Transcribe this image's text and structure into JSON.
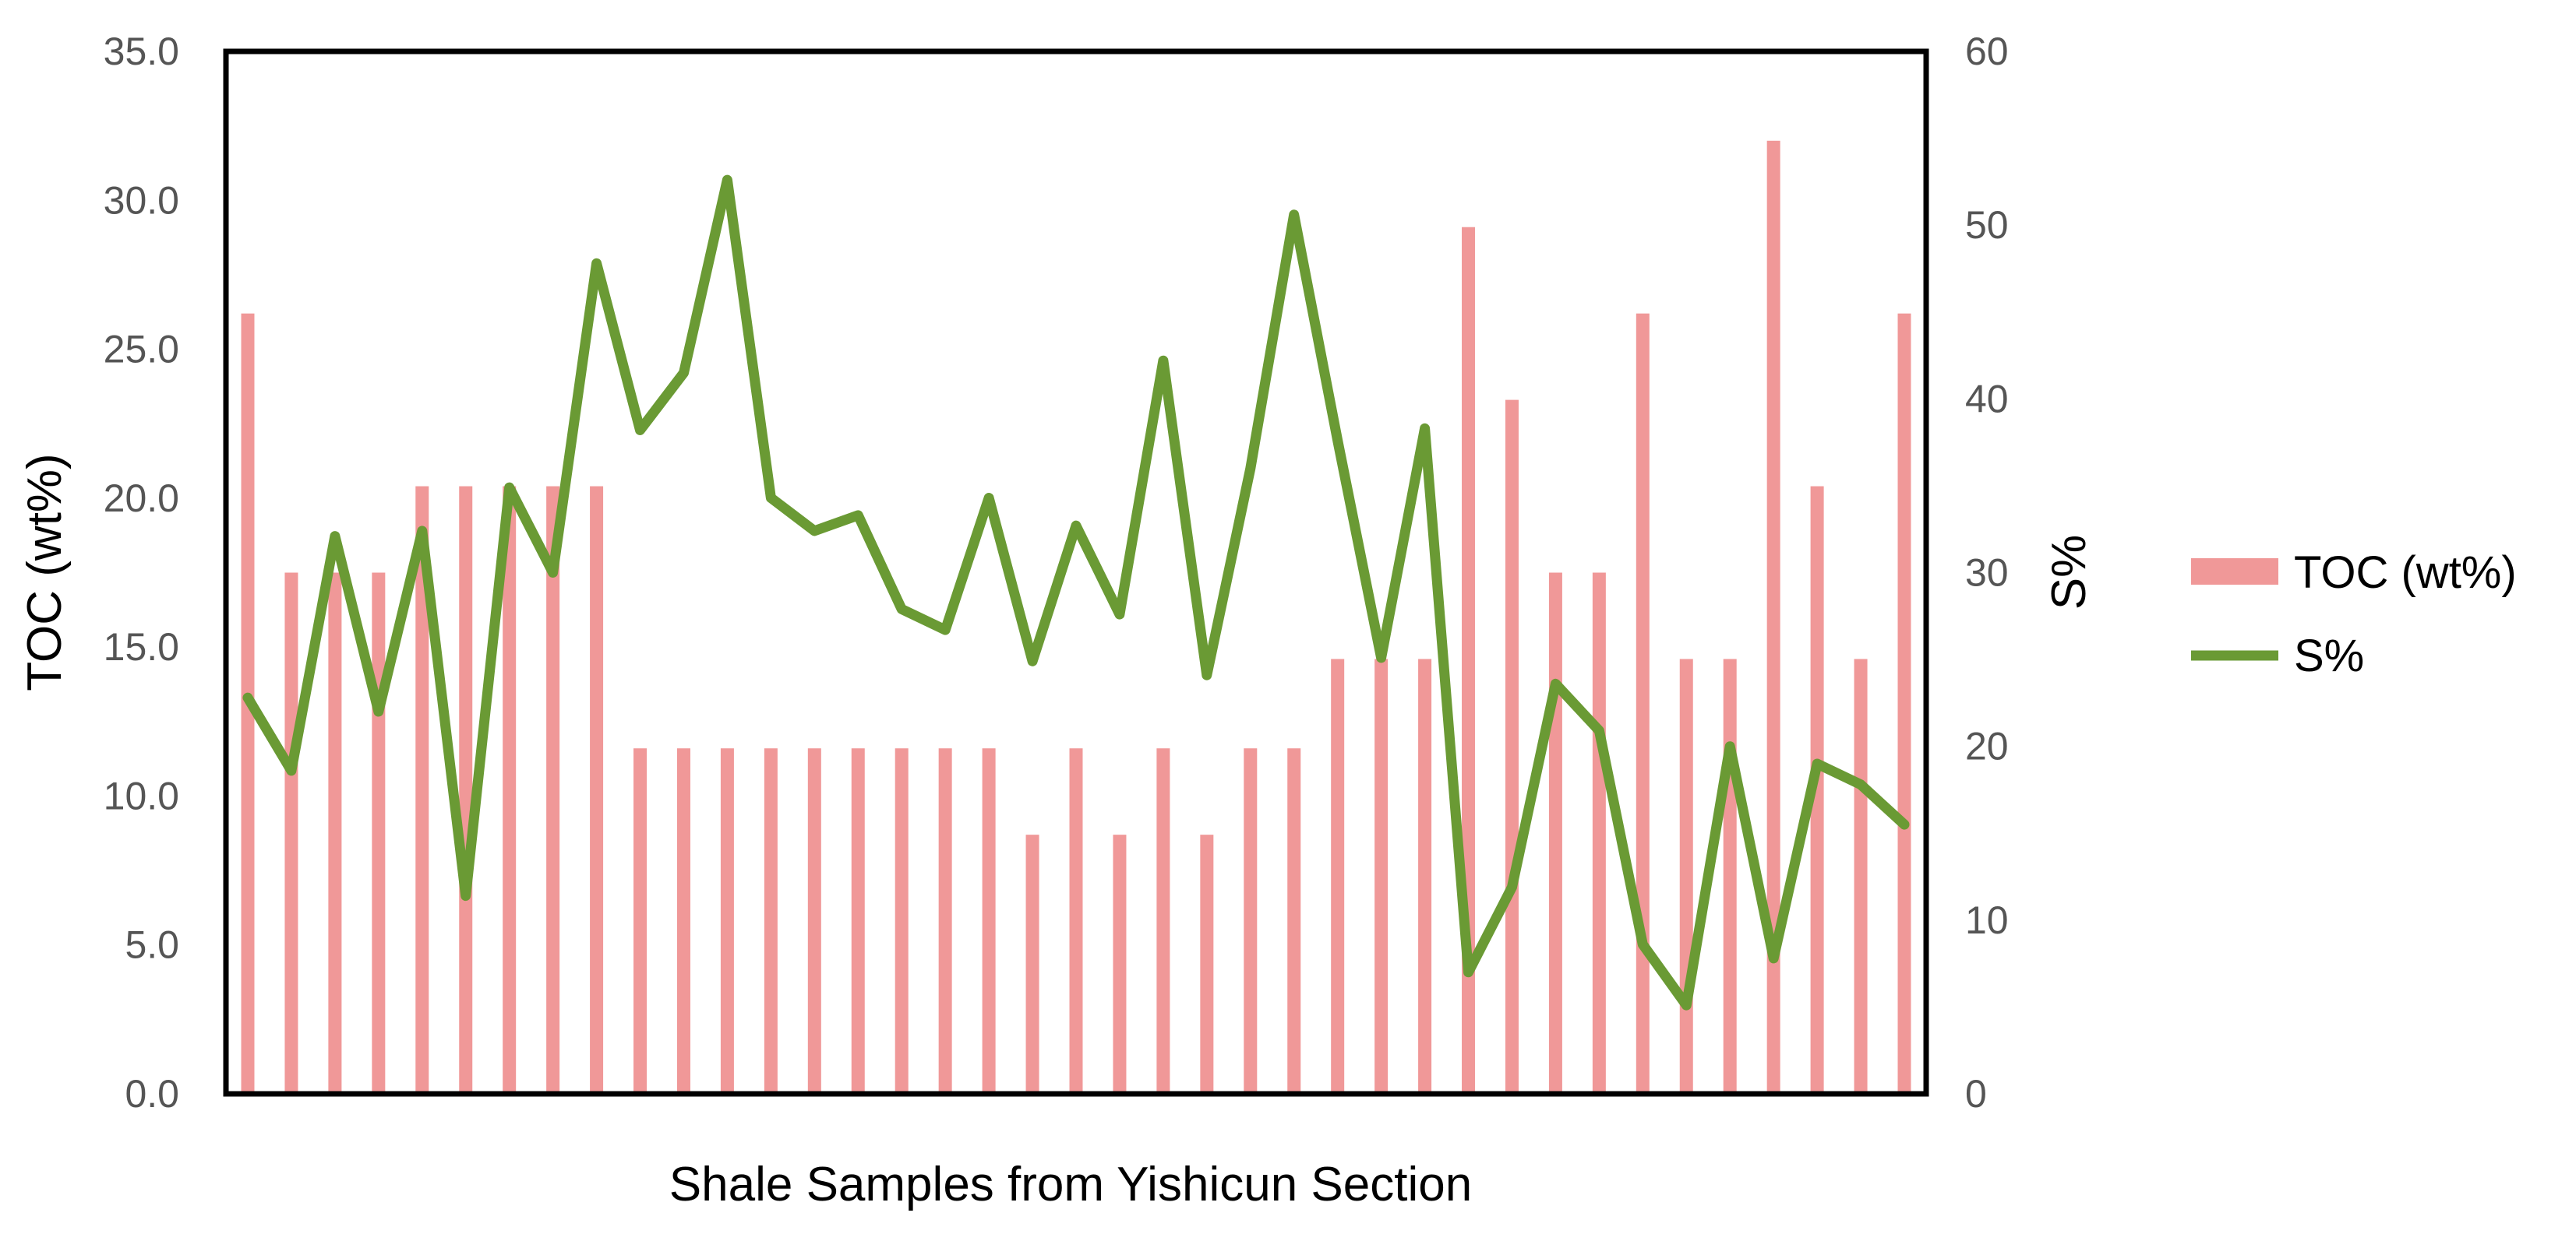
{
  "chart_data": {
    "type": "bar",
    "xlabel": "Shale Samples from Yishicun Section",
    "ylabel": "TOC (wt%)",
    "y2label": "S%",
    "ylim": [
      0,
      35
    ],
    "y2lim": [
      0,
      60
    ],
    "yticks": [
      "0.0",
      "5.0",
      "10.0",
      "15.0",
      "20.0",
      "25.0",
      "30.0",
      "35.0"
    ],
    "y2ticks": [
      "0",
      "10",
      "20",
      "30",
      "40",
      "50",
      "60"
    ],
    "grid": false,
    "legend_position": "right",
    "series": [
      {
        "name": "TOC (wt%)",
        "type": "bar",
        "color": "#f09898",
        "values": [
          26.2,
          17.5,
          17.5,
          17.5,
          20.4,
          20.4,
          20.4,
          20.4,
          20.4,
          11.6,
          11.6,
          11.6,
          11.6,
          11.6,
          11.6,
          11.6,
          11.6,
          11.6,
          8.7,
          11.6,
          8.7,
          11.6,
          8.7,
          11.6,
          11.6,
          14.6,
          14.6,
          14.6,
          29.1,
          23.3,
          17.5,
          17.5,
          26.2,
          14.6,
          14.6,
          32.0,
          20.4,
          14.6,
          26.2
        ]
      },
      {
        "name": "S%",
        "type": "line",
        "axis": "right",
        "color": "#6a9a34",
        "values": [
          22.8,
          18.6,
          32.1,
          22.0,
          32.4,
          11.4,
          34.9,
          30.0,
          47.8,
          38.2,
          41.5,
          52.6,
          34.3,
          32.4,
          33.3,
          27.9,
          26.7,
          34.3,
          24.9,
          32.7,
          27.6,
          42.2,
          24.1,
          36.0,
          50.6,
          37.6,
          25.1,
          38.3,
          7.0,
          11.9,
          23.6,
          20.9,
          8.6,
          5.1,
          20.0,
          7.8,
          19.0,
          17.8,
          15.5
        ]
      }
    ]
  }
}
